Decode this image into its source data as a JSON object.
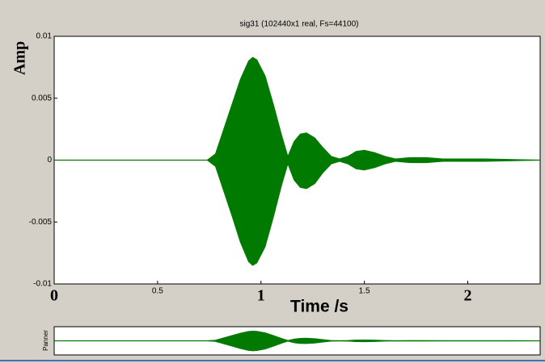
{
  "chart_data": {
    "type": "area",
    "title": "sig31 (102440x1 real, Fs=44100)",
    "xlabel": "Time /s",
    "ylabel": "Amp",
    "x": [
      0,
      0.74,
      0.78,
      0.82,
      0.86,
      0.9,
      0.94,
      0.96,
      0.98,
      1.02,
      1.06,
      1.1,
      1.13,
      1.16,
      1.19,
      1.22,
      1.26,
      1.3,
      1.34,
      1.38,
      1.42,
      1.46,
      1.5,
      1.55,
      1.6,
      1.65,
      1.72,
      1.8,
      1.88,
      1.98,
      2.03,
      2.08,
      2.35
    ],
    "series": [
      {
        "color": "#007a00",
        "values": [
          0,
          0,
          0.0005,
          0.0025,
          0.0045,
          0.0065,
          0.008,
          0.0083,
          0.0081,
          0.0068,
          0.0045,
          0.002,
          0.0003,
          0.0015,
          0.0021,
          0.0022,
          0.0018,
          0.001,
          0.0003,
          0.0001,
          0.0003,
          0.0007,
          0.0008,
          0.0006,
          0.0003,
          0.0001,
          0.0002,
          0.0002,
          0.0001,
          0.0001,
          0.0001,
          0.0001,
          0
        ]
      },
      {
        "color": "#007a00",
        "values": [
          0,
          0,
          -0.0005,
          -0.0025,
          -0.0045,
          -0.0066,
          -0.0082,
          -0.0085,
          -0.0083,
          -0.007,
          -0.0046,
          -0.002,
          -0.0003,
          -0.0016,
          -0.0022,
          -0.0023,
          -0.0019,
          -0.001,
          -0.0003,
          -0.0001,
          -0.0003,
          -0.0007,
          -0.0008,
          -0.0006,
          -0.0003,
          -0.0001,
          -0.0002,
          -0.0002,
          -0.0001,
          -0.0001,
          -0.0001,
          -0.0001,
          0
        ]
      }
    ],
    "xlim": [
      0,
      2.35
    ],
    "xticks": [
      0,
      0.5,
      1,
      1.5,
      2
    ],
    "ylim": [
      -0.01,
      0.01
    ],
    "yticks": [
      -0.01,
      -0.005,
      0,
      0.005,
      0.01
    ],
    "grid": false
  },
  "panner": {
    "label": "Panner"
  }
}
